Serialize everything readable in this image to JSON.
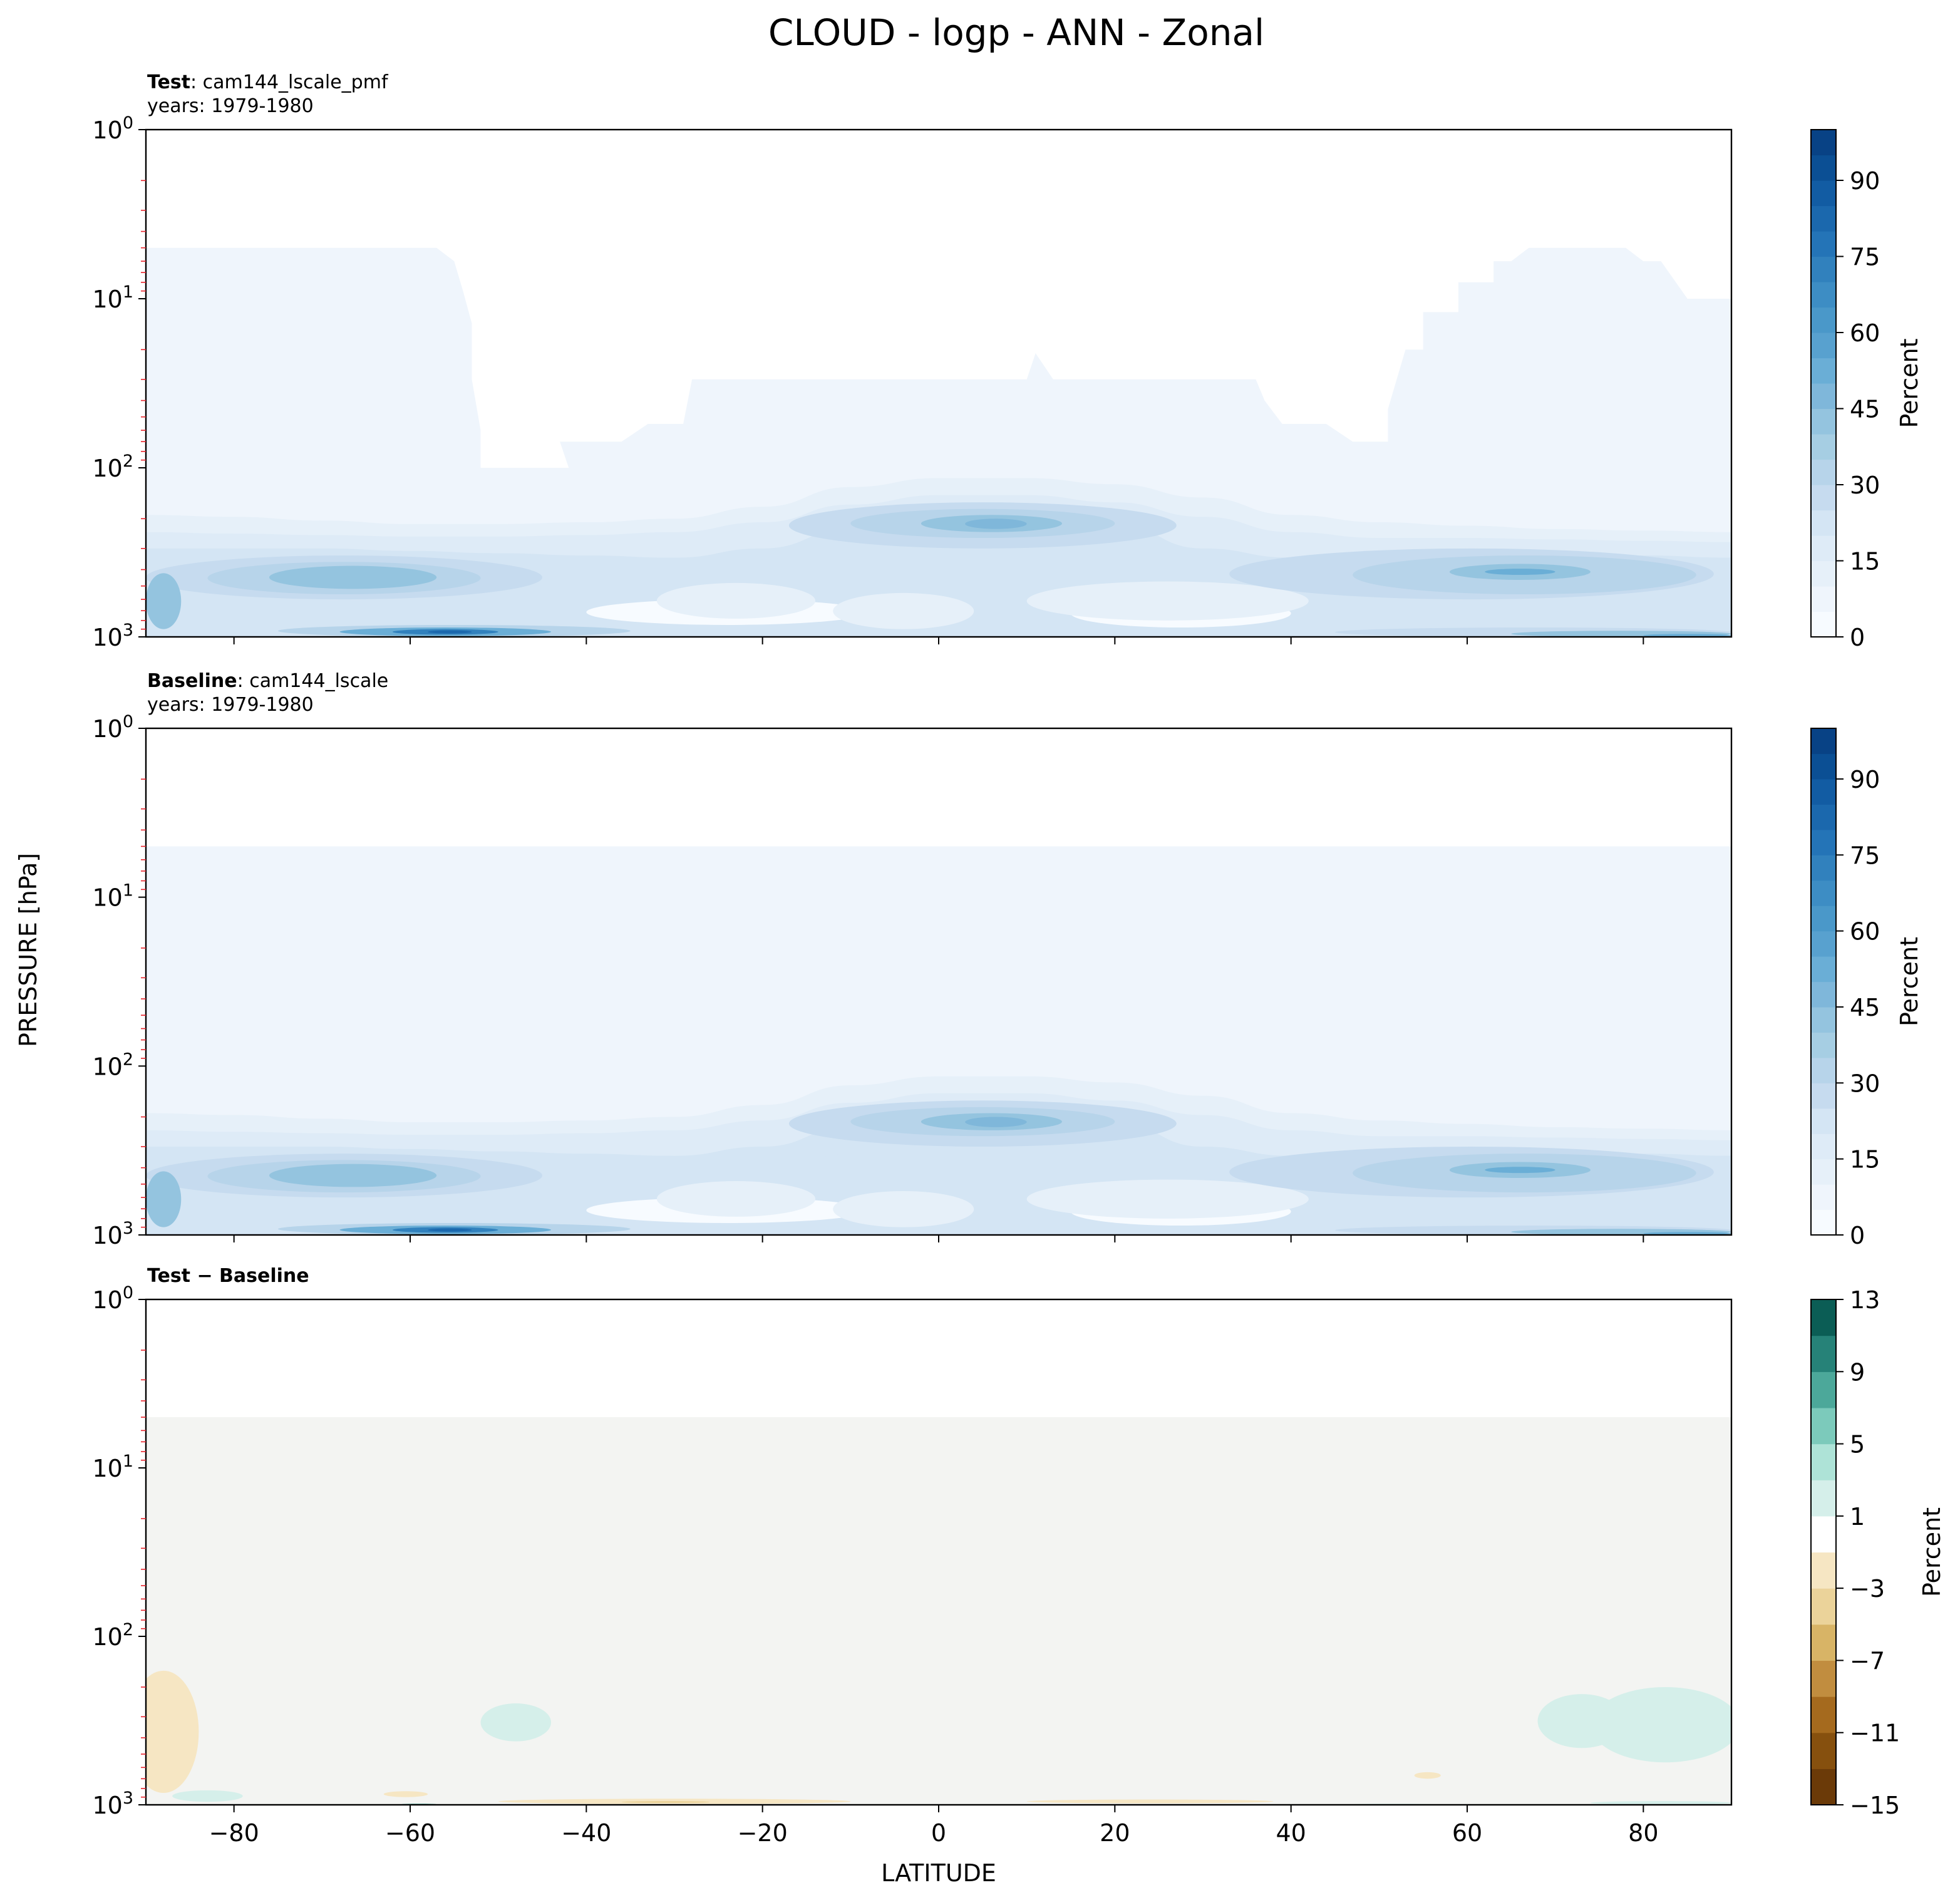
{
  "figure": {
    "title": "CLOUD - logp - ANN - Zonal",
    "ylabel": "PRESSURE [hPa]",
    "xlabel": "LATITUDE"
  },
  "panels": [
    {
      "id": "test",
      "title_bold": "Test",
      "title_rest": ": cam144_lscale_pmf",
      "subtitle": "years: 1979-1980",
      "colorbar_label": "Percent",
      "colorbar_ticks": [
        "0",
        "15",
        "30",
        "45",
        "60",
        "75",
        "90"
      ]
    },
    {
      "id": "baseline",
      "title_bold": "Baseline",
      "title_rest": ": cam144_lscale",
      "subtitle": "years: 1979-1980",
      "colorbar_label": "Percent",
      "colorbar_ticks": [
        "0",
        "15",
        "30",
        "45",
        "60",
        "75",
        "90"
      ]
    },
    {
      "id": "diff",
      "title_bold": "Test − Baseline",
      "title_rest": "",
      "subtitle": "",
      "colorbar_label": "Percent",
      "colorbar_ticks": [
        "−15",
        "−11",
        "−7",
        "−3",
        "1",
        "5",
        "9",
        "13"
      ]
    }
  ],
  "chart_data": [
    {
      "type": "heatmap",
      "title": "Test: cam144_lscale_pmf",
      "xlabel": "LATITUDE",
      "ylabel": "PRESSURE [hPa]",
      "xlim": [
        -90,
        90
      ],
      "ylim": [
        1000,
        1
      ],
      "yscale": "log",
      "x_ticks": [
        -80,
        -60,
        -40,
        -20,
        0,
        20,
        40,
        60,
        80
      ],
      "y_ticks": [
        "10^3",
        "10^2",
        "10^1",
        "10^0"
      ],
      "colormap": "Blues",
      "color_range": [
        0,
        100
      ],
      "color_levels_step": 5,
      "color_ticks": [
        0,
        15,
        30,
        45,
        60,
        75,
        90
      ],
      "colorbar_label": "Percent",
      "features": [
        {
          "region": "lat -90..-56, p 5..1000",
          "value_range": [
            0,
            5
          ]
        },
        {
          "region": "lat 54..90, p 5..1000",
          "value_range": [
            0,
            5
          ]
        },
        {
          "region": "lat -30..47, p 30..1000",
          "value_range": [
            0,
            5
          ]
        },
        {
          "region": "tropical upper cloud lat 0..12, p ~200",
          "value_range": [
            35,
            45
          ]
        },
        {
          "region": "southern midlatitude lat -70..-55, p 350..500",
          "value_range": [
            25,
            35
          ]
        },
        {
          "region": "southern surface max lat -60..-50, p ~900",
          "value_range": [
            60,
            75
          ]
        },
        {
          "region": "northern midlatitude lat 60..70, p ~400",
          "value_range": [
            30,
            40
          ]
        },
        {
          "region": "arctic surface lat 75..90, p ~950",
          "value_range": [
            40,
            50
          ]
        }
      ]
    },
    {
      "type": "heatmap",
      "title": "Baseline: cam144_lscale",
      "xlabel": "LATITUDE",
      "ylabel": "PRESSURE [hPa]",
      "xlim": [
        -90,
        90
      ],
      "ylim": [
        1000,
        1
      ],
      "yscale": "log",
      "x_ticks": [
        -80,
        -60,
        -40,
        -20,
        0,
        20,
        40,
        60,
        80
      ],
      "y_ticks": [
        "10^3",
        "10^2",
        "10^1",
        "10^0"
      ],
      "colormap": "Blues",
      "color_range": [
        0,
        100
      ],
      "color_levels_step": 5,
      "color_ticks": [
        0,
        15,
        30,
        45,
        60,
        75,
        90
      ],
      "colorbar_label": "Percent",
      "features": [
        {
          "region": "all latitudes, p 5..1000",
          "value_range": [
            0,
            5
          ]
        },
        {
          "region": "tropical upper cloud lat 0..12, p ~200",
          "value_range": [
            35,
            45
          ]
        },
        {
          "region": "southern midlatitude lat -70..-55, p 350..500",
          "value_range": [
            25,
            35
          ]
        },
        {
          "region": "southern surface max lat -60..-50, p ~900",
          "value_range": [
            60,
            75
          ]
        },
        {
          "region": "northern midlatitude lat 60..70, p ~400",
          "value_range": [
            30,
            40
          ]
        },
        {
          "region": "arctic surface lat 75..90, p ~950",
          "value_range": [
            40,
            50
          ]
        }
      ]
    },
    {
      "type": "heatmap",
      "title": "Test − Baseline",
      "xlabel": "LATITUDE",
      "ylabel": "PRESSURE [hPa]",
      "xlim": [
        -90,
        90
      ],
      "ylim": [
        1000,
        1
      ],
      "yscale": "log",
      "x_ticks": [
        -80,
        -60,
        -40,
        -20,
        0,
        20,
        40,
        60,
        80
      ],
      "y_ticks": [
        "10^3",
        "10^2",
        "10^1",
        "10^0"
      ],
      "colormap": "BrBG",
      "color_levels": [
        -15,
        -13,
        -11,
        -9,
        -7,
        -5,
        -3,
        -1,
        1,
        3,
        5,
        7,
        9,
        11,
        13
      ],
      "color_ticks": [
        -15,
        -11,
        -7,
        -3,
        1,
        5,
        9,
        13
      ],
      "colorbar_label": "Percent",
      "features": [
        {
          "region": "all latitudes, p 5..1000",
          "value_range": [
            -1,
            1
          ]
        },
        {
          "region": "lat -90..-85, p 170..800",
          "value_range": [
            -3,
            -1
          ]
        },
        {
          "region": "lat -50..-45, p 250..400",
          "value_range": [
            1,
            3
          ]
        },
        {
          "region": "lat -50..-10, p ~950",
          "value_range": [
            -3,
            -1
          ]
        },
        {
          "region": "lat 10..38, p ~950",
          "value_range": [
            -3,
            -1
          ]
        },
        {
          "region": "lat 68..90, p 200..550",
          "value_range": [
            1,
            3
          ]
        },
        {
          "region": "lat -85..-80, p ~900",
          "value_range": [
            1,
            3
          ]
        }
      ]
    }
  ]
}
